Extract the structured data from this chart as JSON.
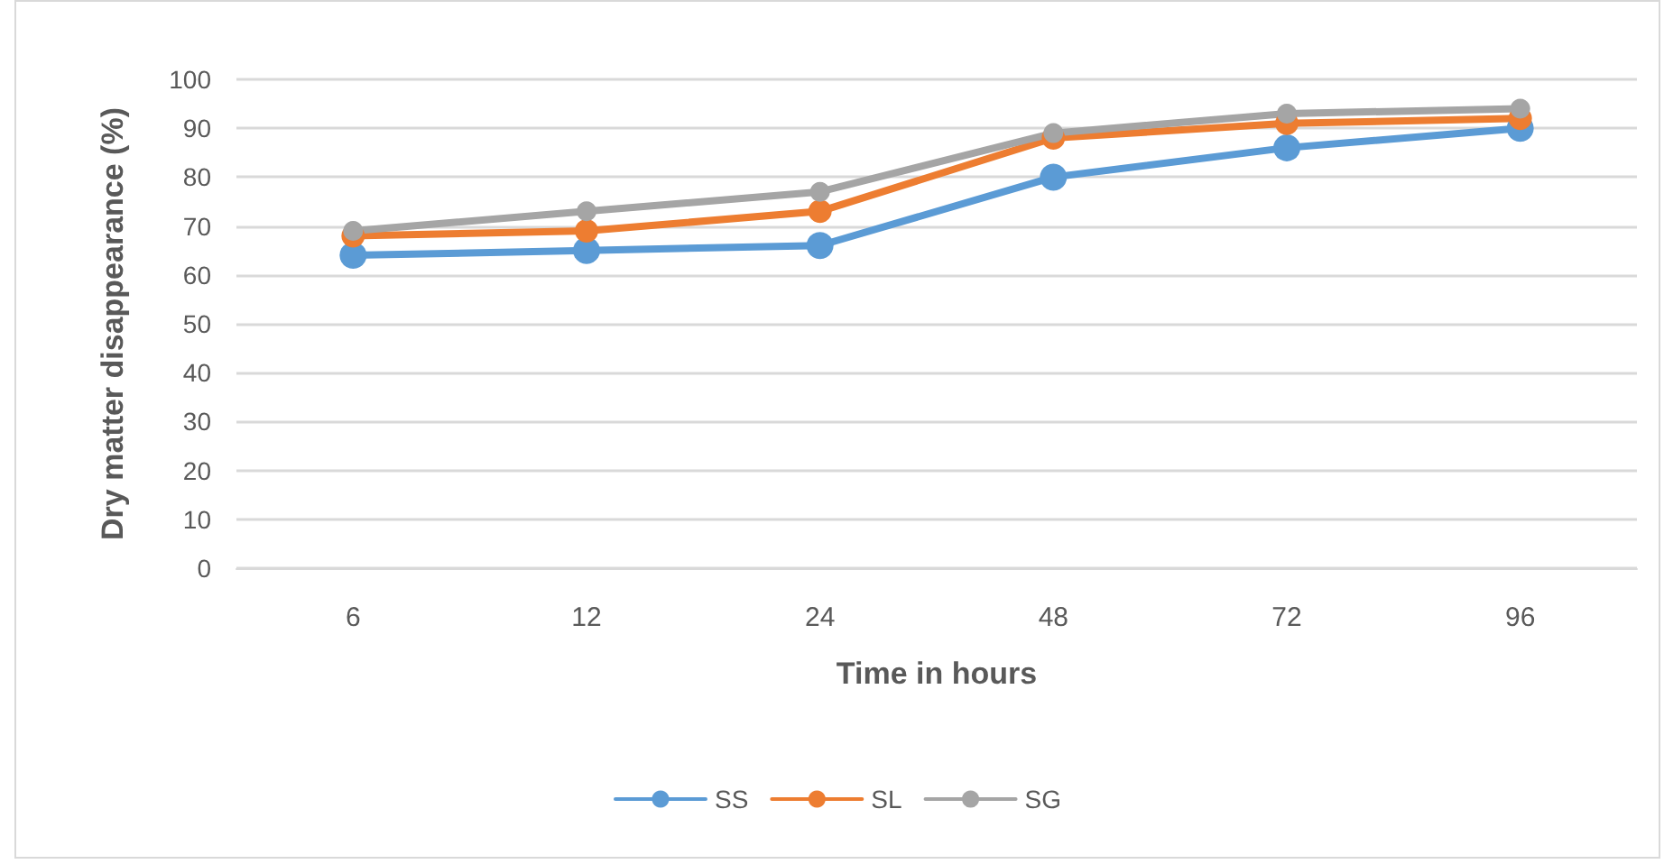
{
  "chart_data": {
    "type": "line",
    "xlabel": "Time in hours",
    "ylabel": "Dry matter disappearance (%)",
    "categories": [
      "6",
      "12",
      "24",
      "48",
      "72",
      "96"
    ],
    "series": [
      {
        "name": "SS",
        "color": "#5b9bd5",
        "values": [
          64,
          65,
          66,
          80,
          86,
          90
        ]
      },
      {
        "name": "SL",
        "color": "#ed7d31",
        "values": [
          68,
          69,
          73,
          88,
          91,
          92
        ]
      },
      {
        "name": "SG",
        "color": "#a5a5a5",
        "values": [
          69,
          73,
          77,
          89,
          93,
          94
        ]
      }
    ],
    "ylim": [
      0,
      100
    ],
    "yticks": [
      0,
      10,
      20,
      30,
      40,
      50,
      60,
      70,
      80,
      90,
      100
    ],
    "grid": "y",
    "legend": "bottom",
    "marker": "circle",
    "line_style": "solid"
  }
}
